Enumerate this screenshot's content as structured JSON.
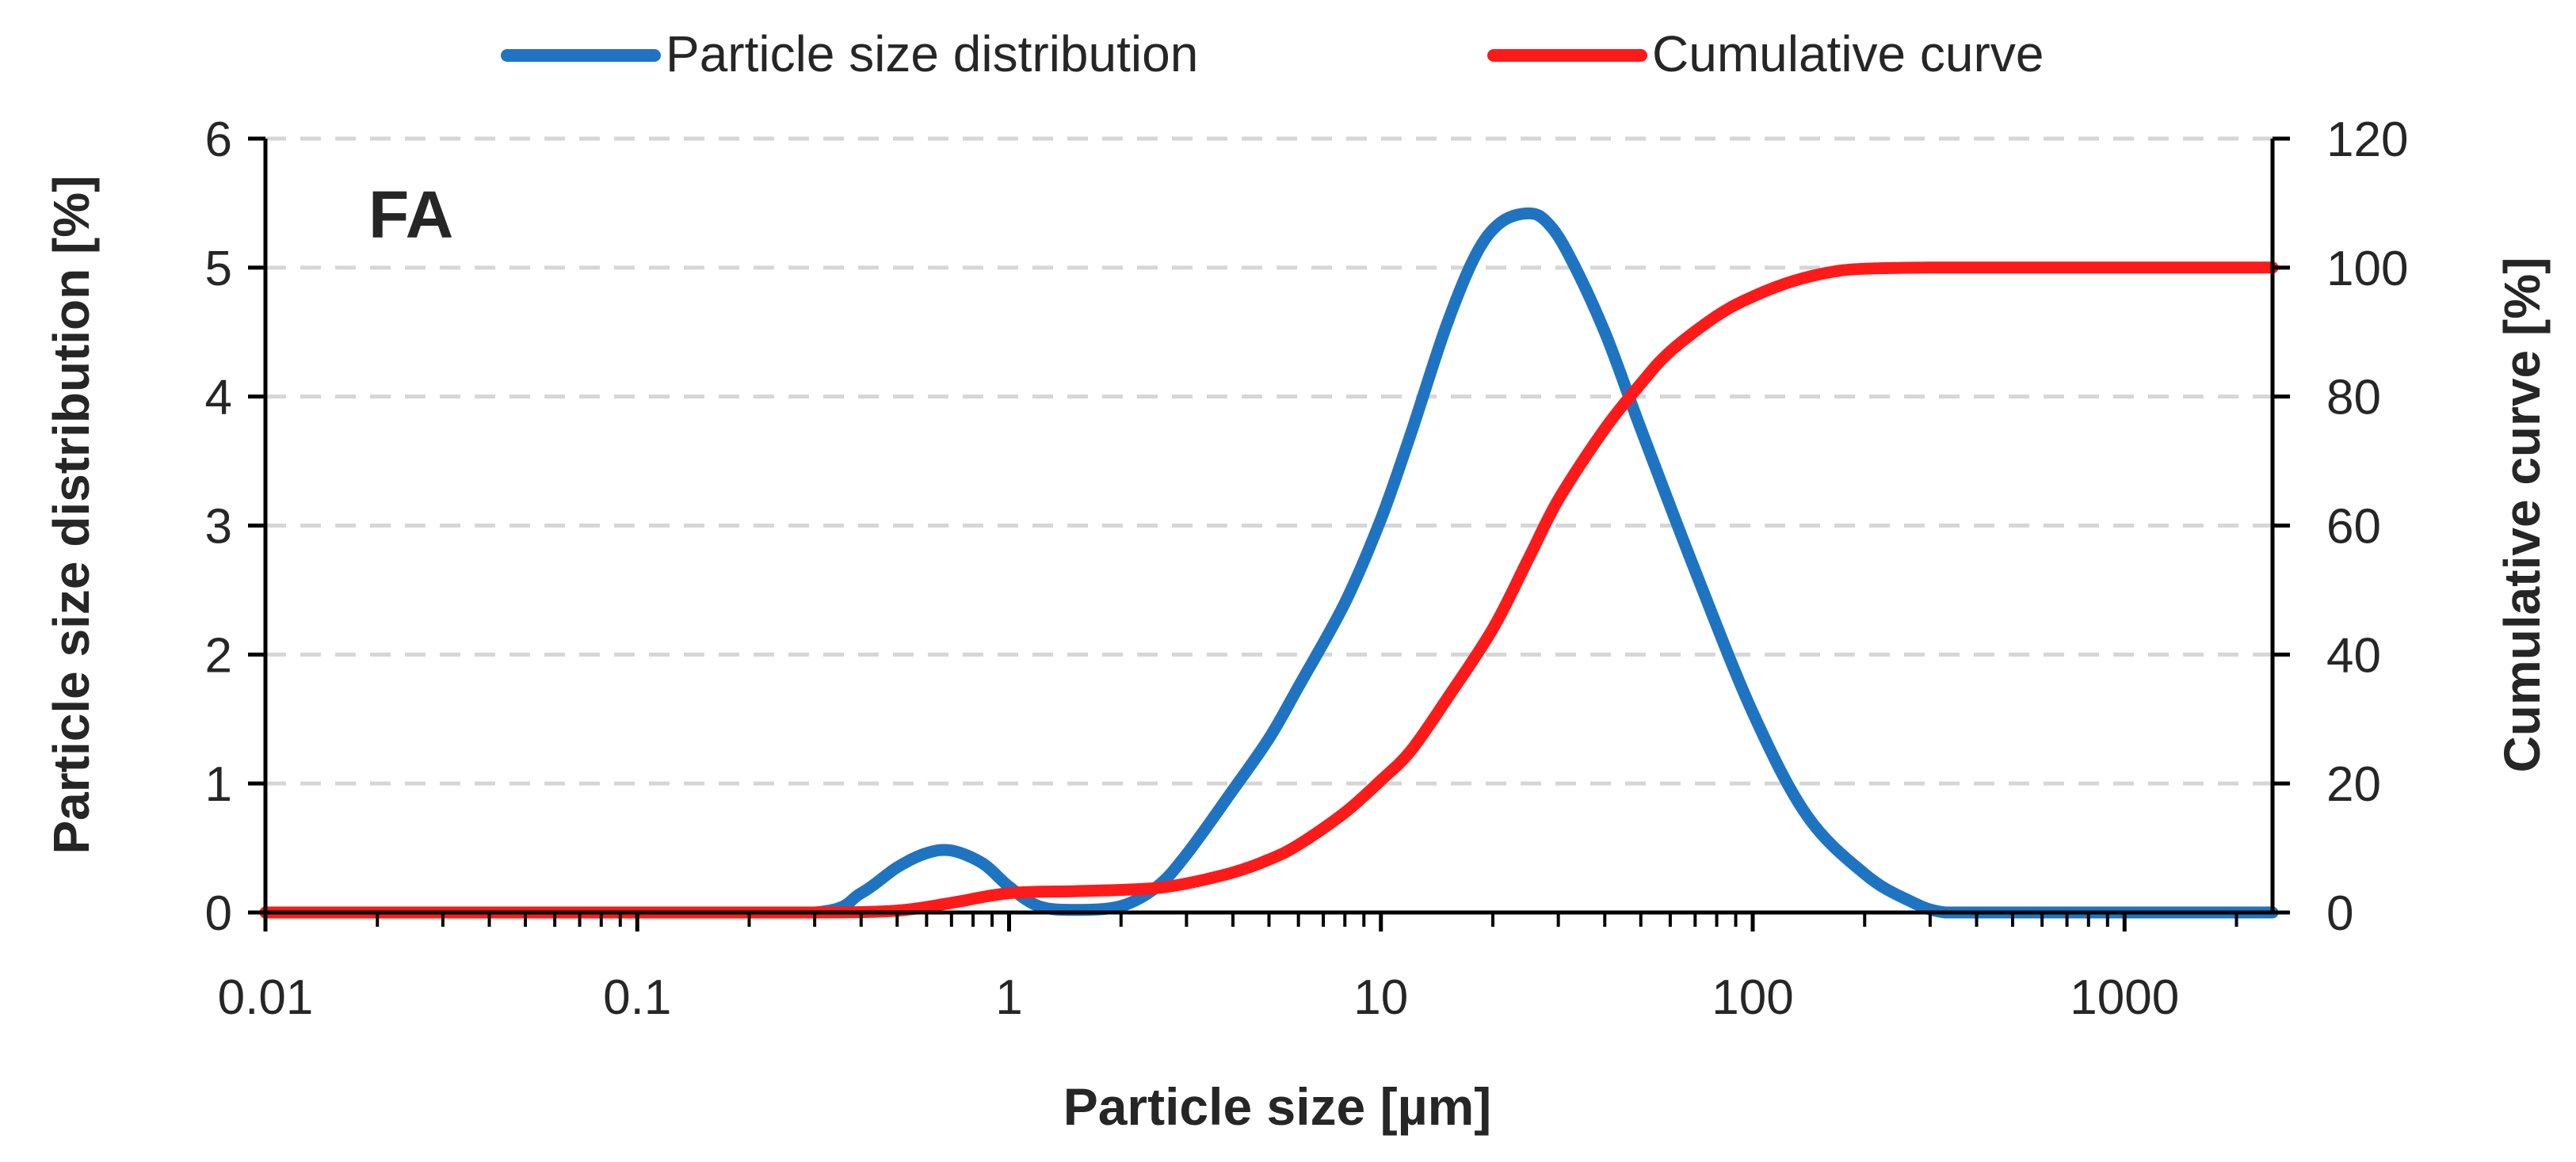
{
  "chart_data": {
    "type": "line",
    "panel_label": "FA",
    "xlabel": "Particle size [µm]",
    "ylabel_left": "Particle size distribution  [%]",
    "ylabel_right": "Cumulative curve [%]",
    "x_scale": "log",
    "xlim": [
      0.01,
      2500
    ],
    "ylim_left": [
      0,
      6
    ],
    "ylim_right": [
      0,
      120
    ],
    "x_ticks": [
      0.01,
      0.1,
      1,
      10,
      100,
      1000
    ],
    "x_tick_labels": [
      "0.01",
      "0.1",
      "1",
      "10",
      "100",
      "1000"
    ],
    "y_left_ticks": [
      0,
      1,
      2,
      3,
      4,
      5,
      6
    ],
    "y_left_tick_labels": [
      "0",
      "1",
      "2",
      "3",
      "4",
      "5",
      "6"
    ],
    "y_right_ticks": [
      0,
      20,
      40,
      60,
      80,
      100,
      120
    ],
    "y_right_tick_labels": [
      "0",
      "20",
      "40",
      "60",
      "80",
      "100",
      "120"
    ],
    "grid": "horizontal dashed",
    "legend_position": "top-center",
    "series": [
      {
        "name": "Particle size distribution",
        "axis": "left",
        "color": "#1F74C2",
        "x": [
          0.01,
          0.1,
          0.3,
          0.4,
          0.5,
          0.6,
          0.7,
          0.85,
          1.0,
          1.2,
          1.5,
          2.0,
          2.5,
          3.0,
          4.0,
          5.0,
          6.0,
          8.0,
          10.0,
          12.0,
          15.0,
          18.0,
          21.0,
          25.0,
          28.0,
          32.0,
          40.0,
          50.0,
          70.0,
          100.0,
          140.0,
          200.0,
          260.0,
          330.0,
          500.0,
          1000.0,
          2500.0
        ],
        "y": [
          0.0,
          0.0,
          0.0,
          0.15,
          0.35,
          0.46,
          0.48,
          0.38,
          0.2,
          0.05,
          0.02,
          0.05,
          0.2,
          0.45,
          0.95,
          1.35,
          1.75,
          2.4,
          3.05,
          3.7,
          4.55,
          5.1,
          5.35,
          5.42,
          5.35,
          5.1,
          4.5,
          3.75,
          2.65,
          1.55,
          0.75,
          0.3,
          0.1,
          0.0,
          0.0,
          0.0,
          0.0
        ]
      },
      {
        "name": "Cumulative curve",
        "axis": "right",
        "color": "#FF1A1A",
        "x": [
          0.01,
          0.1,
          0.3,
          0.5,
          0.7,
          1.0,
          1.5,
          2.0,
          2.5,
          3.0,
          4.0,
          5.0,
          6.0,
          8.0,
          10.0,
          12.0,
          15.0,
          20.0,
          25.0,
          30.0,
          40.0,
          50.0,
          60.0,
          80.0,
          100.0,
          130.0,
          170.0,
          220.0,
          300.0,
          500.0,
          1000.0,
          2500.0
        ],
        "y": [
          0.0,
          0.0,
          0.0,
          0.3,
          1.5,
          3.0,
          3.3,
          3.5,
          3.8,
          4.5,
          6.2,
          8.2,
          10.5,
          15.5,
          20.5,
          25.0,
          33.0,
          44.0,
          55.0,
          64.0,
          75.0,
          82.0,
          87.0,
          92.5,
          95.5,
          98.0,
          99.5,
          99.9,
          100.0,
          100.0,
          100.0,
          100.0
        ]
      }
    ]
  }
}
